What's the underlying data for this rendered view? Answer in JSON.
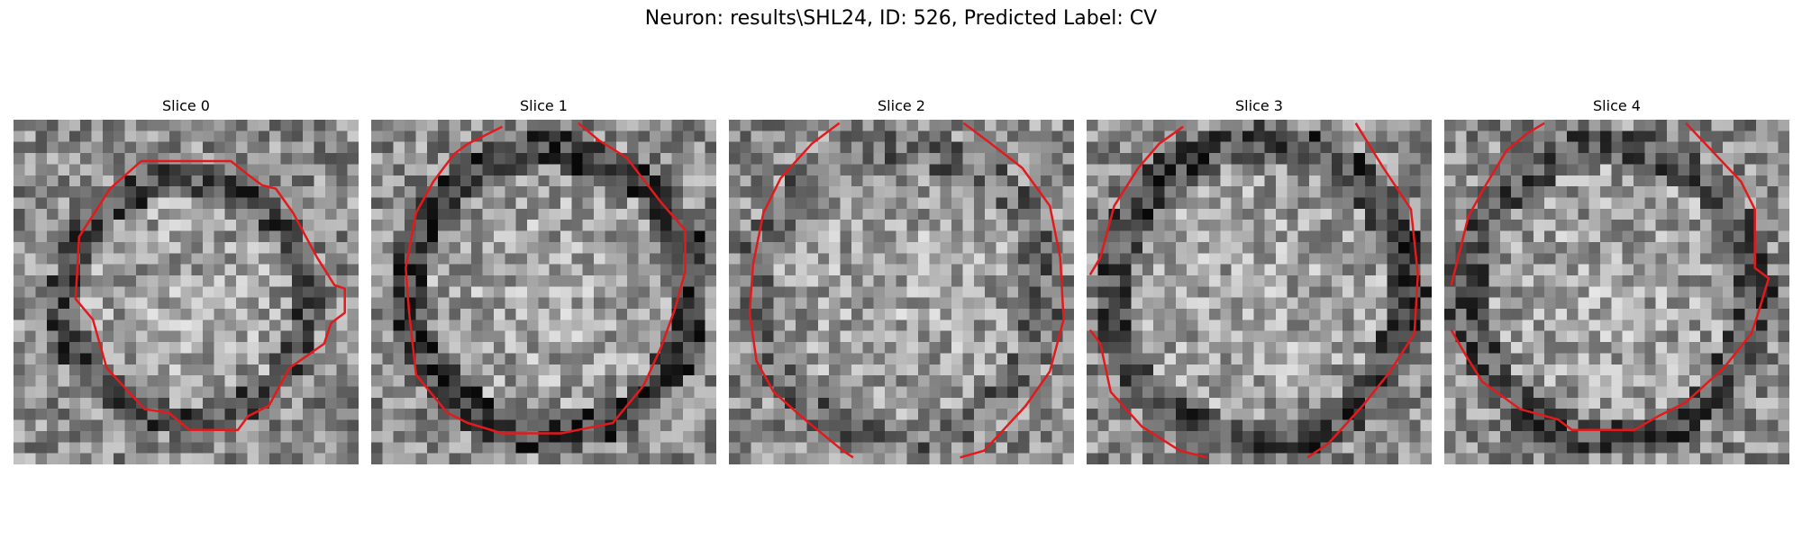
{
  "figure": {
    "title": "Neuron: results\\SHL24, ID: 526, Predicted Label: CV"
  },
  "panels": [
    {
      "title": "Slice 0"
    },
    {
      "title": "Slice 1"
    },
    {
      "title": "Slice 2"
    },
    {
      "title": "Slice 3"
    },
    {
      "title": "Slice 4"
    }
  ],
  "colors": {
    "contour": "#e31a1c",
    "background": "#ffffff"
  }
}
